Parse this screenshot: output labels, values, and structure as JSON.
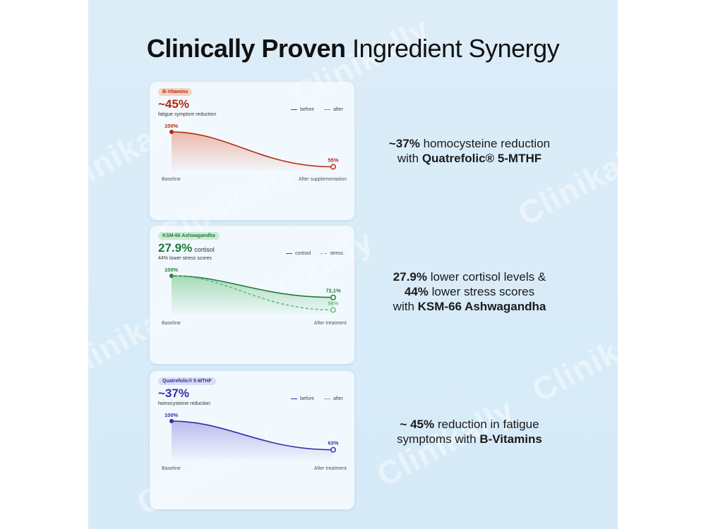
{
  "page": {
    "title_bold": "Clinically Proven",
    "title_light": "Ingredient Synergy",
    "watermark": "Clinikally"
  },
  "colors": {
    "background": "#d9ecf8",
    "bvitamin": "#b32a10",
    "bvitamin_after": "#e07a4d",
    "ashwagandha": "#1f7a3b",
    "ashwagandha_after": "#5fbf73",
    "folate": "#3030a8",
    "folate_after": "#9aa0d0"
  },
  "cards": [
    {
      "badge": "B-Vitamins",
      "headline": "~45%",
      "unit": "",
      "subtitle": "fatigue symptom reduction",
      "legend": [
        "before",
        "after"
      ],
      "x_labels": [
        "Baseline",
        "After supplementation"
      ]
    },
    {
      "badge": "KSM-66 Ashwagandha",
      "headline": "27.9%",
      "unit": "cortisol",
      "subtitle": "44% lower stress scores",
      "legend": [
        "cortisol",
        "stress"
      ],
      "x_labels": [
        "Baseline",
        "After treatment"
      ]
    },
    {
      "badge": "Quatrefolic® 5-MTHF",
      "headline": "~37%",
      "unit": "",
      "subtitle": "homocysteine reduction",
      "legend": [
        "before",
        "after"
      ],
      "x_labels": [
        "Baseline",
        "After treatment"
      ]
    }
  ],
  "claims": [
    {
      "line1_bold": "~37%",
      "line1_rest": "homocysteine reduction",
      "line2_pre": "with",
      "line2_bold": "Quatrefolic® 5-MTHF"
    },
    {
      "line1_bold": "27.9%",
      "line1_rest": "lower cortisol levels &",
      "line2_bold": "44%",
      "line2_rest": "lower stress scores",
      "line3_pre": "with",
      "line3_bold": "KSM-66 Ashwagandha"
    },
    {
      "line1_bold": "~ 45%",
      "line1_rest": "reduction in fatigue",
      "line2_pre": "symptoms with",
      "line2_bold": "B-Vitamins"
    }
  ],
  "chart_data": [
    {
      "type": "line",
      "title": "B-Vitamins",
      "x": [
        "Baseline",
        "After supplementation"
      ],
      "series": [
        {
          "name": "before",
          "values": [
            100,
            55
          ],
          "labels": [
            "100%",
            "55%"
          ]
        }
      ],
      "ylim": [
        0,
        100
      ]
    },
    {
      "type": "line",
      "title": "KSM-66 Ashwagandha",
      "x": [
        "Baseline",
        "After treatment"
      ],
      "series": [
        {
          "name": "cortisol",
          "values": [
            100,
            72.1
          ],
          "labels": [
            "100%",
            "72,1%"
          ]
        },
        {
          "name": "stress",
          "values": [
            100,
            56
          ],
          "labels": [
            "",
            "56%"
          ]
        }
      ],
      "ylim": [
        0,
        100
      ]
    },
    {
      "type": "line",
      "title": "Quatrefolic® 5-MTHF",
      "x": [
        "Baseline",
        "After treatment"
      ],
      "series": [
        {
          "name": "before",
          "values": [
            100,
            63
          ],
          "labels": [
            "100%",
            "63%"
          ]
        }
      ],
      "ylim": [
        0,
        100
      ]
    }
  ]
}
